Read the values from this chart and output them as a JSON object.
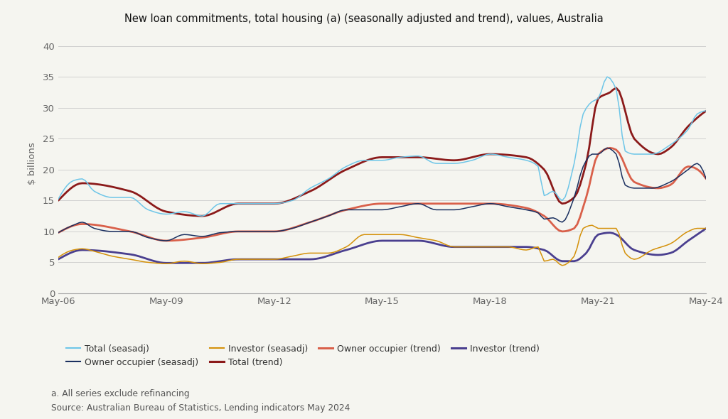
{
  "title": "New loan commitments, total housing (a) (seasonally adjusted and trend), values, Australia",
  "ylabel": "$ billions",
  "footnote_a": "a. All series exclude refinancing",
  "source": "Source: Australian Bureau of Statistics, Lending indicators May 2024",
  "ylim": [
    0,
    42
  ],
  "yticks": [
    0,
    5,
    10,
    15,
    20,
    25,
    30,
    35,
    40
  ],
  "background_color": "#f5f5f0",
  "plot_bg": "#f5f5f0",
  "series_order": [
    "total_trend",
    "owner_occ_trend",
    "investor_trend",
    "total_seasadj",
    "owner_occ_seasadj",
    "investor_seasadj"
  ],
  "series": {
    "total_seasadj": {
      "label": "Total (seasadj)",
      "color": "#6ec6e8",
      "lw": 1.1,
      "zorder": 4
    },
    "owner_occ_seasadj": {
      "label": "Owner occupier (seasadj)",
      "color": "#1b3060",
      "lw": 1.1,
      "zorder": 4
    },
    "investor_seasadj": {
      "label": "Investor (seasadj)",
      "color": "#d4910a",
      "lw": 1.1,
      "zorder": 4
    },
    "total_trend": {
      "label": "Total (trend)",
      "color": "#8b1a1a",
      "lw": 2.0,
      "zorder": 3
    },
    "owner_occ_trend": {
      "label": "Owner occupier (trend)",
      "color": "#d9604a",
      "lw": 2.0,
      "zorder": 3
    },
    "investor_trend": {
      "label": "Investor (trend)",
      "color": "#4a3f8f",
      "lw": 2.0,
      "zorder": 3
    }
  },
  "xtick_labels": [
    "May-06",
    "May-09",
    "May-12",
    "May-15",
    "May-18",
    "May-21",
    "May-24"
  ],
  "xtick_positions": [
    0,
    36,
    72,
    108,
    144,
    180,
    216
  ],
  "n_points": 217,
  "legend_items": [
    {
      "label": "Total (seasadj)",
      "color": "#6ec6e8",
      "lw": 1.5
    },
    {
      "label": "Owner occupier (seasadj)",
      "color": "#1b3060",
      "lw": 1.5
    },
    {
      "label": "Investor (seasadj)",
      "color": "#d4910a",
      "lw": 1.5
    },
    {
      "label": "Total (trend)",
      "color": "#8b1a1a",
      "lw": 2.2
    },
    {
      "label": "Owner occupier (trend)",
      "color": "#d9604a",
      "lw": 2.2
    },
    {
      "label": "Investor (trend)",
      "color": "#4a3f8f",
      "lw": 2.2
    }
  ]
}
